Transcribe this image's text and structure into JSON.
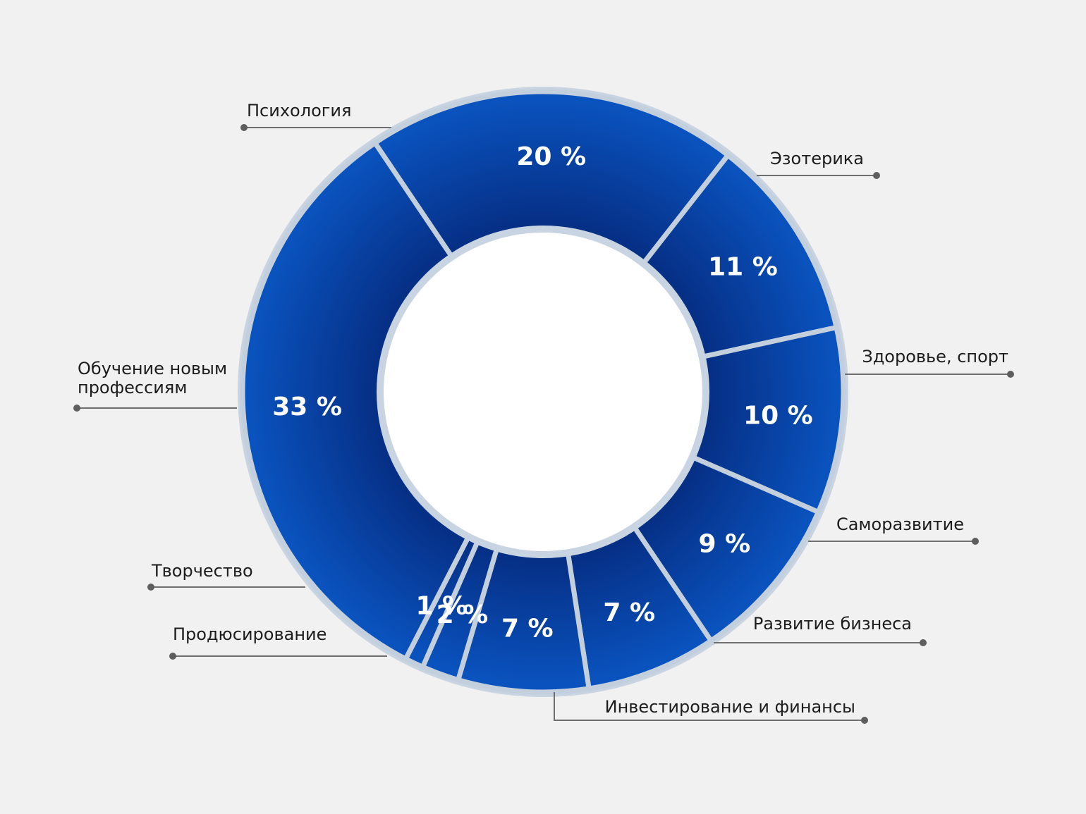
{
  "chart_data": {
    "type": "pie",
    "variant": "donut",
    "title": "",
    "categories": [
      "Психология",
      "Эзотерика",
      "Здоровье, спорт",
      "Саморазвитие",
      "Развитие бизнеса",
      "Инвестирование и финансы",
      "Продюсирование",
      "Творчество",
      "Обучение новым профессиям"
    ],
    "values": [
      20,
      11,
      10,
      9,
      7,
      7,
      2,
      1,
      33
    ],
    "value_labels": [
      "20 %",
      "11 %",
      "10 %",
      "9 %",
      "7 %",
      "7 %",
      "2 %",
      "1 %",
      "33 %"
    ],
    "colors": {
      "segment": "#0847a8",
      "segment_dark": "#062f85",
      "segment_light": "#0a55c2",
      "ring_outline": "#c9d4e2",
      "separator": "#c3cfdd",
      "background": "#f1f1f1",
      "hole": "#ffffff"
    }
  }
}
